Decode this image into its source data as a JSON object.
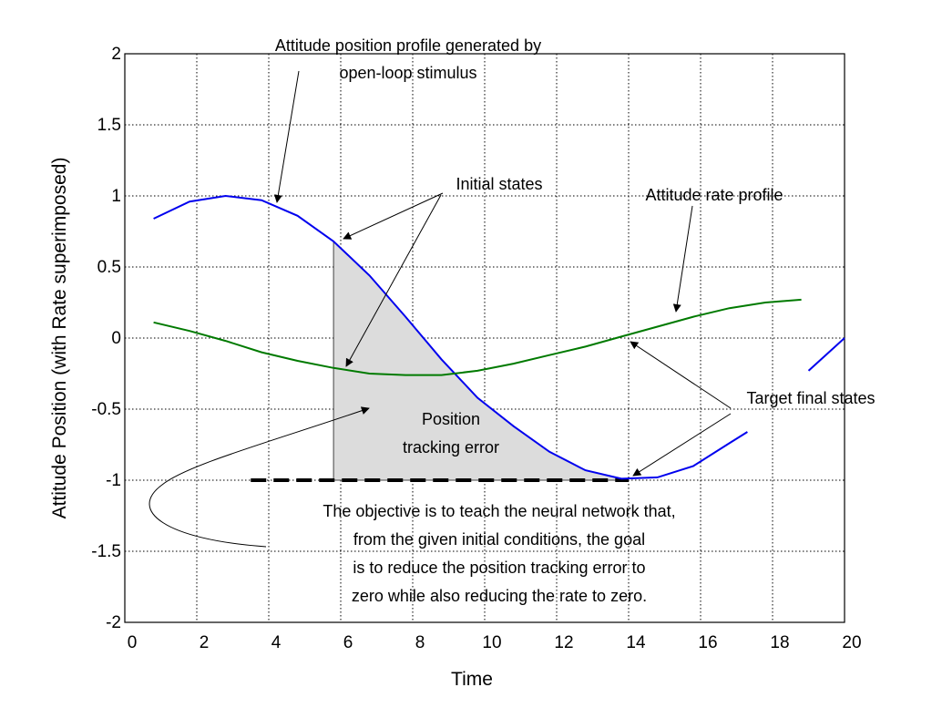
{
  "chart_data": {
    "type": "line",
    "xlabel": "Time",
    "ylabel": "Attitude Position (with Rate superimposed)",
    "xlim": [
      0,
      20
    ],
    "ylim": [
      -2,
      2
    ],
    "xticks": [
      0,
      2,
      4,
      6,
      8,
      10,
      12,
      14,
      16,
      18,
      20
    ],
    "yticks": [
      -2,
      -1.5,
      -1,
      -0.5,
      0,
      0.5,
      1,
      1.5,
      2
    ],
    "ytick_labels": [
      "-2",
      "-1.5",
      "-1",
      "-0.5",
      "0",
      "0.5",
      "1",
      "1.5",
      "2"
    ],
    "grid": true,
    "series": [
      {
        "role": "position",
        "color": "#0000ee",
        "x": [
          0.8,
          1.8,
          2.8,
          3.8,
          4.8,
          5.8,
          6.8,
          7.8,
          8.8,
          9.8,
          10.8,
          11.8,
          12.8,
          13.8,
          14.8,
          15.8,
          16.8,
          17.3
        ],
        "y": [
          0.84,
          0.96,
          1.0,
          0.97,
          0.86,
          0.68,
          0.44,
          0.15,
          -0.15,
          -0.42,
          -0.62,
          -0.8,
          -0.93,
          -0.99,
          -0.98,
          -0.9,
          -0.74,
          -0.66
        ]
      },
      {
        "role": "position-continued",
        "color": "#0000ee",
        "x": [
          19.0,
          20.0
        ],
        "y": [
          -0.23,
          0.0
        ]
      },
      {
        "role": "rate",
        "color": "#007a00",
        "x": [
          0.8,
          1.8,
          2.8,
          3.8,
          4.8,
          5.8,
          6.8,
          7.8,
          8.8,
          9.8,
          10.8,
          11.8,
          12.8,
          13.8,
          14.8,
          15.8,
          16.8,
          17.8,
          18.8
        ],
        "y": [
          0.11,
          0.05,
          -0.02,
          -0.1,
          -0.16,
          -0.21,
          -0.25,
          -0.26,
          -0.26,
          -0.23,
          -0.18,
          -0.12,
          -0.06,
          0.01,
          0.08,
          0.15,
          0.21,
          0.25,
          0.27
        ]
      }
    ],
    "shaded_region": {
      "label": "Position tracking error",
      "x_start": 5.8,
      "x_end": 13.8,
      "baseline": -1.0,
      "color": "#dcdcdc"
    },
    "target_line": {
      "y": -1.0,
      "x_start": 3.5,
      "x_end": 14.0
    },
    "annotations": {
      "position_profile": [
        "Attitude position profile generated by",
        "open-loop stimulus"
      ],
      "initial_states": "Initial states",
      "rate_profile": "Attitude rate profile",
      "target_final_states": "Target final states",
      "tracking_error": [
        "Position",
        "tracking error"
      ],
      "objective": [
        "The objective is to teach the neural network that,",
        "from the given initial conditions,  the goal",
        "is to reduce the position tracking error to",
        "zero while also reducing the rate to zero."
      ]
    }
  }
}
